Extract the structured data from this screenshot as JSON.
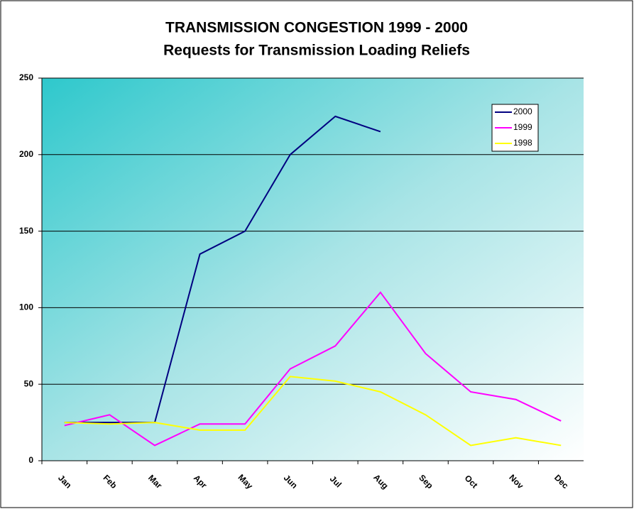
{
  "chart_data": {
    "type": "line",
    "title": "TRANSMISSION CONGESTION 1999 - 2000",
    "subtitle": "Requests for Transmission Loading Reliefs",
    "categories": [
      "Jan",
      "Feb",
      "Mar",
      "Apr",
      "May",
      "Jun",
      "Jul",
      "Aug",
      "Sep",
      "Oct",
      "Nov",
      "Dec"
    ],
    "series": [
      {
        "name": "2000",
        "color": "#000080",
        "values": [
          25,
          25,
          25,
          135,
          150,
          200,
          225,
          215,
          null,
          null,
          null,
          null
        ]
      },
      {
        "name": "1999",
        "color": "#ff00ff",
        "values": [
          23,
          30,
          10,
          24,
          24,
          60,
          75,
          110,
          70,
          45,
          40,
          26
        ]
      },
      {
        "name": "1998",
        "color": "#ffff00",
        "values": [
          25,
          24,
          25,
          20,
          20,
          55,
          52,
          45,
          30,
          10,
          15,
          10
        ]
      }
    ],
    "ylim": [
      0,
      250
    ],
    "yticks": [
      0,
      50,
      100,
      150,
      200,
      250
    ],
    "grid": true,
    "legend": "top-right"
  }
}
